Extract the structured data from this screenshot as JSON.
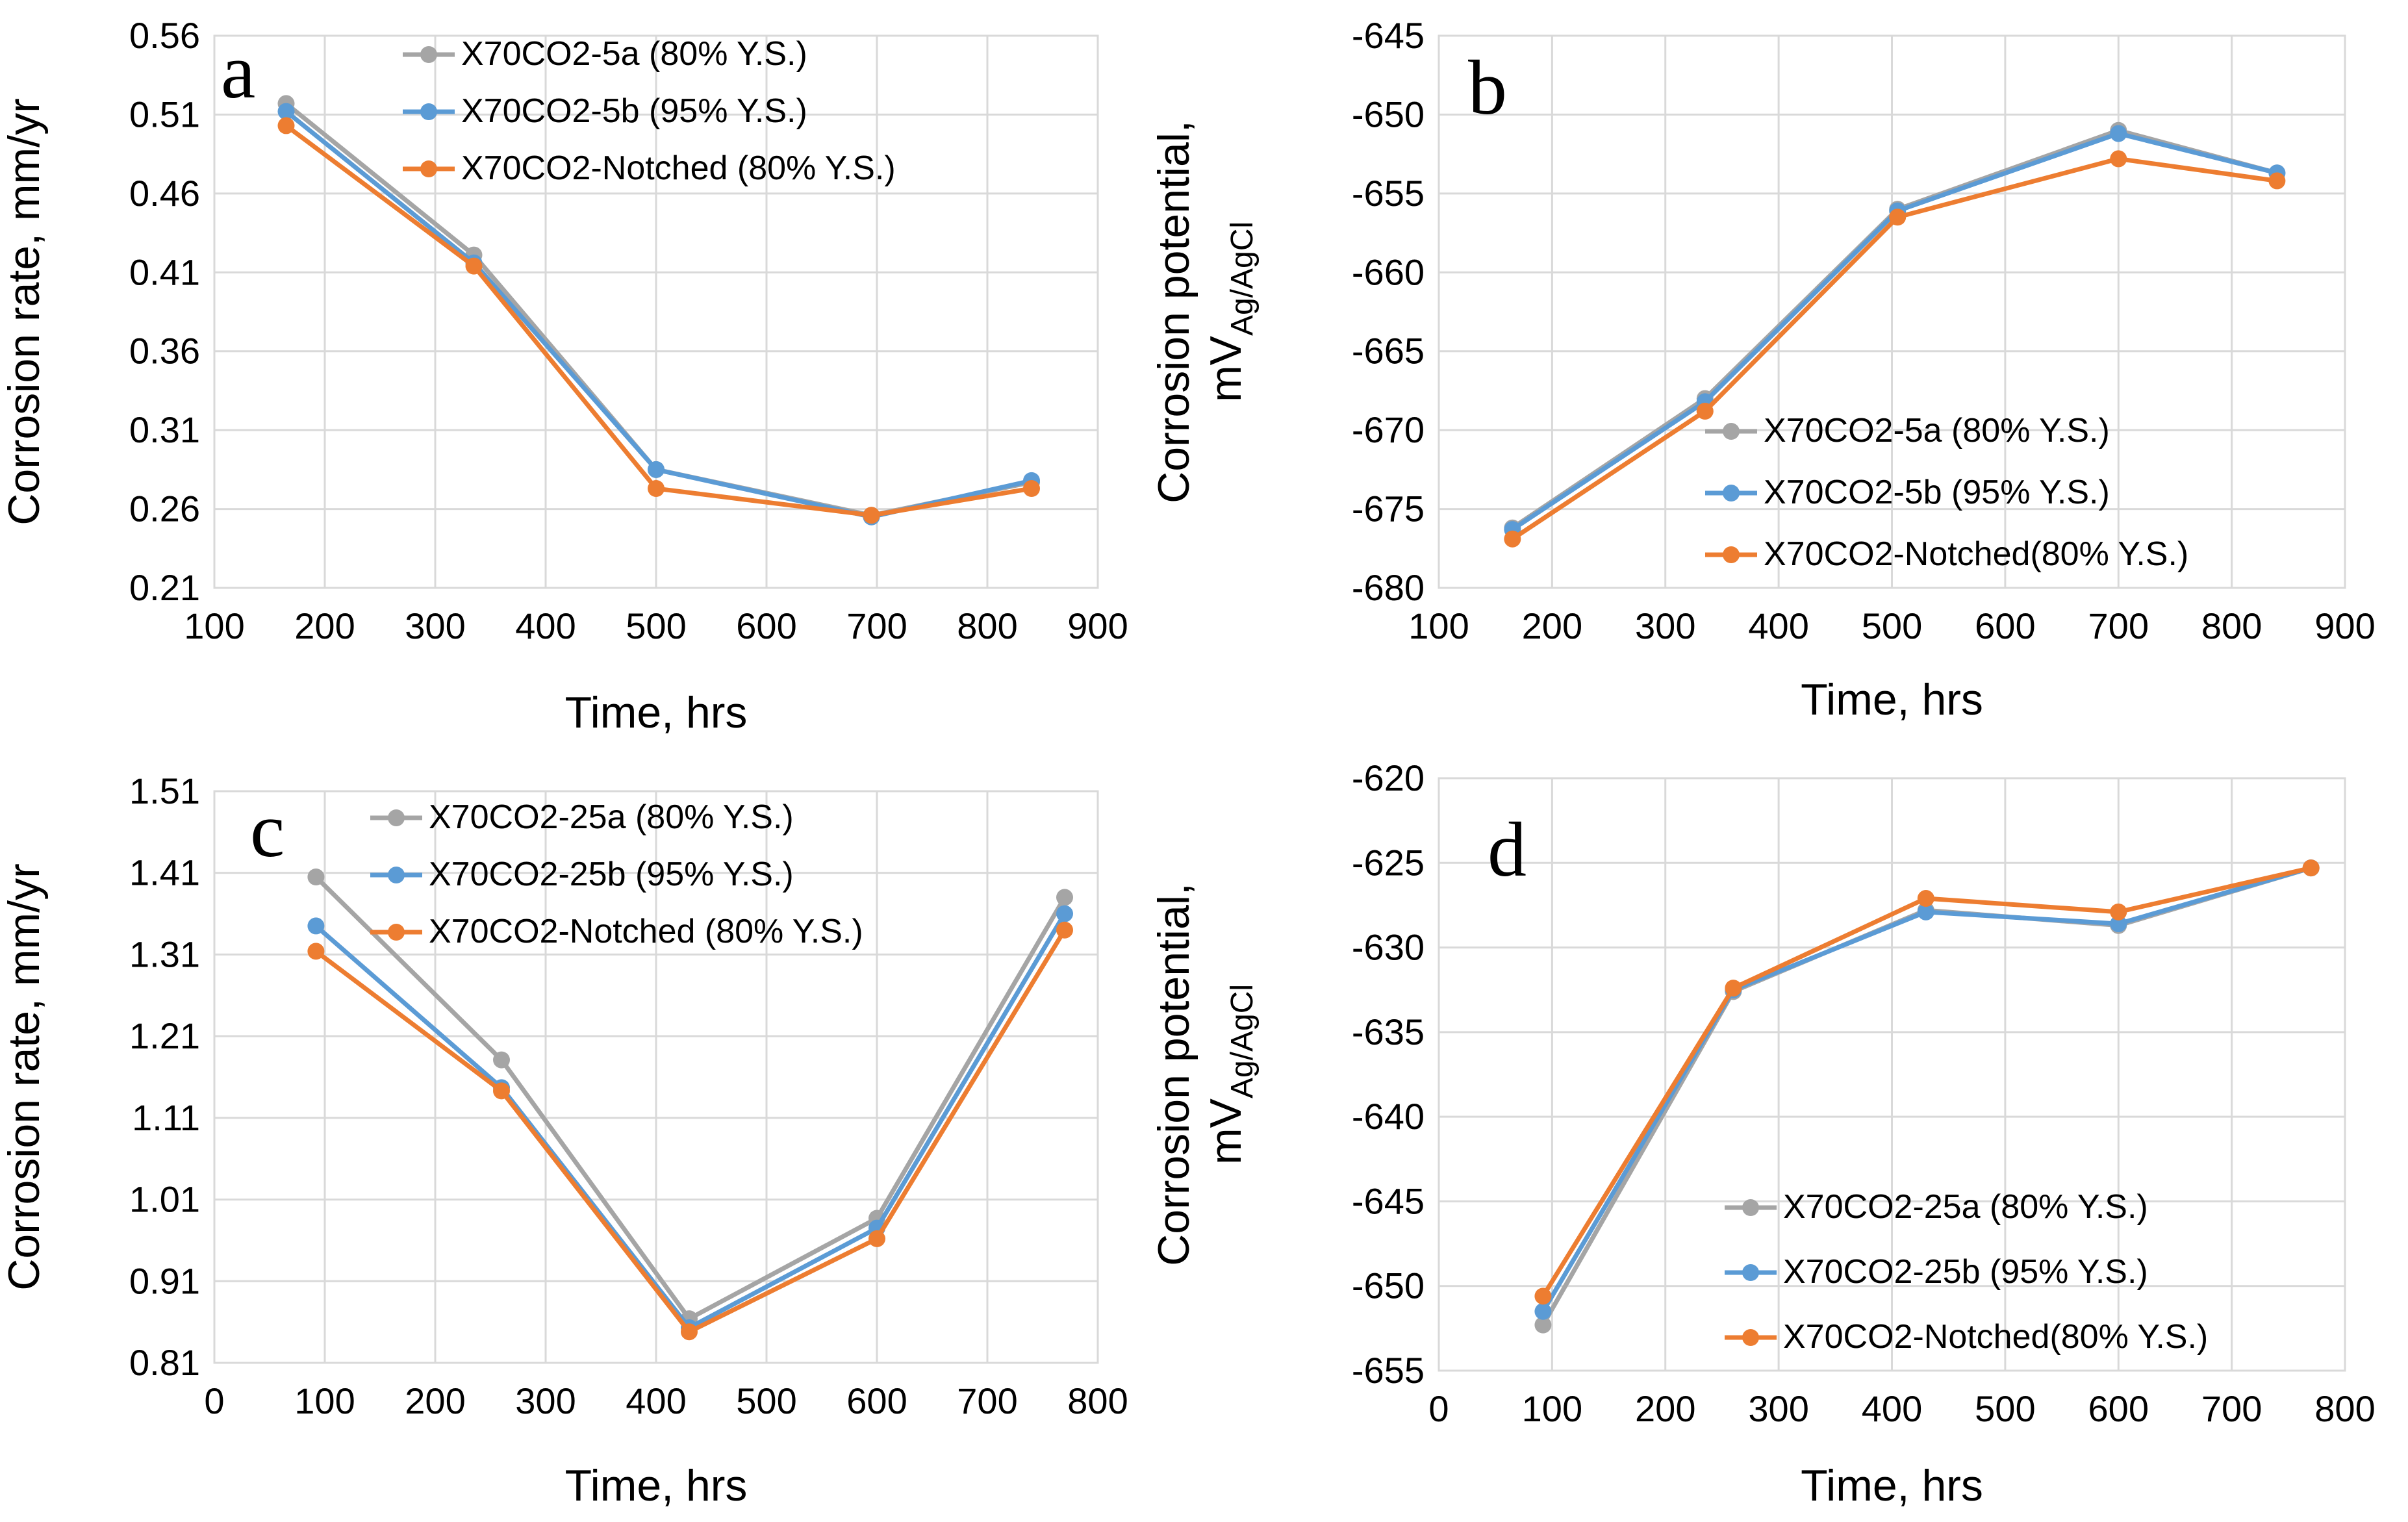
{
  "colors": {
    "gray": "#A5A5A5",
    "blue": "#5B9BD5",
    "orange": "#ED7D31",
    "grid": "#D9D9D9"
  },
  "chart_data": [
    {
      "panel": "a",
      "type": "line",
      "xlabel": "Time, hrs",
      "ylabel": "Corrosion rate, mm/yr",
      "xlim": [
        100,
        900
      ],
      "xticks": [
        100,
        200,
        300,
        400,
        500,
        600,
        700,
        800,
        900
      ],
      "ylim": [
        0.21,
        0.56
      ],
      "yticks": [
        "0.21",
        "0.26",
        "0.31",
        "0.36",
        "0.41",
        "0.46",
        "0.51",
        "0.56"
      ],
      "legend_position": "top-right",
      "series": [
        {
          "name": "X70CO2-5a (80% Y.S.)",
          "color": "#A5A5A5",
          "x": [
            165,
            335,
            500,
            695,
            840
          ],
          "y": [
            0.517,
            0.421,
            0.285,
            0.256,
            0.277
          ]
        },
        {
          "name": "X70CO2-5b (95% Y.S.)",
          "color": "#5B9BD5",
          "x": [
            165,
            335,
            500,
            695,
            840
          ],
          "y": [
            0.512,
            0.416,
            0.285,
            0.255,
            0.278
          ]
        },
        {
          "name": "X70CO2-Notched (80% Y.S.)",
          "color": "#ED7D31",
          "x": [
            165,
            335,
            500,
            695,
            840
          ],
          "y": [
            0.503,
            0.414,
            0.273,
            0.256,
            0.273
          ]
        }
      ]
    },
    {
      "panel": "b",
      "type": "line",
      "xlabel": "Time, hrs",
      "ylabel_main": "Corrosion potential,",
      "ylabel_unit": "mV",
      "ylabel_sub": "Ag/AgCl",
      "xlim": [
        100,
        900
      ],
      "xticks": [
        100,
        200,
        300,
        400,
        500,
        600,
        700,
        800,
        900
      ],
      "ylim": [
        -680,
        -645
      ],
      "yticks": [
        "-645",
        "-650",
        "-655",
        "-660",
        "-665",
        "-670",
        "-675",
        "-680"
      ],
      "legend_position": "bottom-right",
      "series": [
        {
          "name": "X70CO2-5a (80% Y.S.)",
          "color": "#A5A5A5",
          "x": [
            165,
            335,
            505,
            700,
            840
          ],
          "y": [
            -676.2,
            -668.0,
            -656.0,
            -651.0,
            -653.7
          ]
        },
        {
          "name": "X70CO2-5b (95% Y.S.)",
          "color": "#5B9BD5",
          "x": [
            165,
            335,
            505,
            700,
            840
          ],
          "y": [
            -676.3,
            -668.2,
            -656.1,
            -651.2,
            -653.7
          ]
        },
        {
          "name": "X70CO2-Notched(80% Y.S.)",
          "color": "#ED7D31",
          "x": [
            165,
            335,
            505,
            700,
            840
          ],
          "y": [
            -676.9,
            -668.8,
            -656.5,
            -652.8,
            -654.2
          ]
        }
      ]
    },
    {
      "panel": "c",
      "type": "line",
      "xlabel": "Time, hrs",
      "ylabel": "Corrosion rate, mm/yr",
      "xlim": [
        0,
        800
      ],
      "xticks": [
        0,
        100,
        200,
        300,
        400,
        500,
        600,
        700,
        800
      ],
      "ylim": [
        0.81,
        1.51
      ],
      "yticks": [
        "0.81",
        "0.91",
        "1.01",
        "1.11",
        "1.21",
        "1.31",
        "1.41",
        "1.51"
      ],
      "legend_position": "top-right",
      "series": [
        {
          "name": "X70CO2-25a (80% Y.S.)",
          "color": "#A5A5A5",
          "x": [
            92,
            260,
            430,
            600,
            770
          ],
          "y": [
            1.405,
            1.181,
            0.864,
            0.987,
            1.38
          ]
        },
        {
          "name": "X70CO2-25b (95% Y.S.)",
          "color": "#5B9BD5",
          "x": [
            92,
            260,
            430,
            600,
            770
          ],
          "y": [
            1.345,
            1.147,
            0.853,
            0.975,
            1.36
          ]
        },
        {
          "name": "X70CO2-Notched (80% Y.S.)",
          "color": "#ED7D31",
          "x": [
            92,
            260,
            430,
            600,
            770
          ],
          "y": [
            1.314,
            1.143,
            0.848,
            0.962,
            1.34
          ]
        }
      ]
    },
    {
      "panel": "d",
      "type": "line",
      "xlabel": "Time, hrs",
      "ylabel_main": "Corrosion potential,",
      "ylabel_unit": "mV",
      "ylabel_sub": "Ag/AgCl",
      "xlim": [
        0,
        800
      ],
      "xticks": [
        0,
        100,
        200,
        300,
        400,
        500,
        600,
        700,
        800
      ],
      "ylim": [
        -655,
        -620
      ],
      "yticks": [
        "-620",
        "-625",
        "-630",
        "-635",
        "-640",
        "-645",
        "-650",
        "-655"
      ],
      "legend_position": "bottom-right",
      "series": [
        {
          "name": "X70CO2-25a (80% Y.S.)",
          "color": "#A5A5A5",
          "x": [
            92,
            260,
            430,
            600,
            770
          ],
          "y": [
            -652.3,
            -632.6,
            -627.8,
            -628.7,
            -625.3
          ]
        },
        {
          "name": "X70CO2-25b (95% Y.S.)",
          "color": "#5B9BD5",
          "x": [
            92,
            260,
            430,
            600,
            770
          ],
          "y": [
            -651.5,
            -632.5,
            -627.9,
            -628.6,
            -625.3
          ]
        },
        {
          "name": "X70CO2-Notched(80% Y.S.)",
          "color": "#ED7D31",
          "x": [
            92,
            260,
            430,
            600,
            770
          ],
          "y": [
            -650.6,
            -632.4,
            -627.1,
            -627.9,
            -625.3
          ]
        }
      ]
    }
  ]
}
